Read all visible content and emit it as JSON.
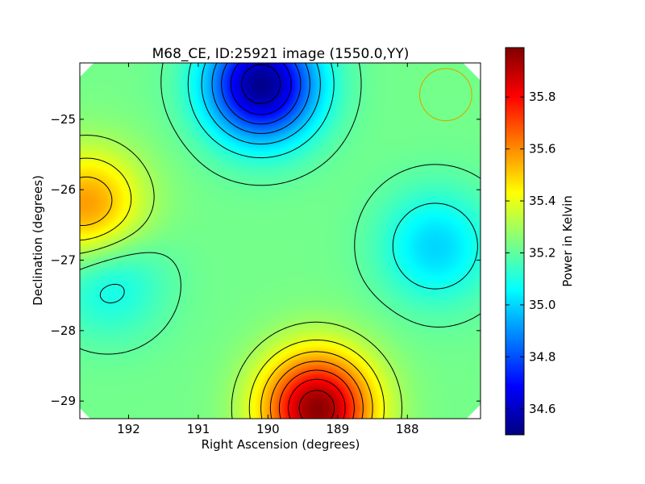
{
  "chart_data": {
    "type": "heatmap",
    "title": "M68_CE, ID:25921 image (1550.0,YY)",
    "xlabel": "Right Ascension (degrees)",
    "ylabel": "Declination (degrees)",
    "xlim": [
      192.7,
      186.95
    ],
    "ylim": [
      -29.25,
      -24.2
    ],
    "x_ticks": [
      192,
      191,
      190,
      189,
      188
    ],
    "x_tick_labels": [
      "192",
      "191",
      "190",
      "189",
      "188"
    ],
    "y_ticks": [
      -25,
      -26,
      -27,
      -28,
      -29
    ],
    "y_tick_labels": [
      "−25",
      "−26",
      "−27",
      "−28",
      "−29"
    ],
    "colorbar": {
      "label": "Power in Kelvin",
      "colormap": "jet",
      "range": [
        34.5,
        35.99
      ],
      "ticks": [
        34.6,
        34.8,
        35.0,
        35.2,
        35.4,
        35.6,
        35.8
      ],
      "tick_labels": [
        "34.6",
        "34.8",
        "35.0",
        "35.2",
        "35.4",
        "35.6",
        "35.8"
      ]
    },
    "field_centre": [
      189.85,
      -26.75
    ],
    "features": [
      {
        "kind": "minimum",
        "ra": 190.1,
        "dec": -24.5,
        "value": 34.52
      },
      {
        "kind": "maximum",
        "ra": 189.3,
        "dec": -29.1,
        "value": 35.97
      },
      {
        "kind": "local maximum",
        "ra": 192.6,
        "dec": -26.25,
        "value": 35.6
      },
      {
        "kind": "plateau",
        "ra": 192.3,
        "dec": -27.25,
        "value": 35.05
      },
      {
        "kind": "plateau",
        "ra": 187.6,
        "dec": -26.8,
        "value": 35.0
      }
    ],
    "contour_levels": [
      34.6,
      34.7,
      34.8,
      34.9,
      35.0,
      35.1,
      35.2,
      35.3,
      35.4,
      35.5,
      35.6,
      35.7,
      35.8,
      35.9
    ],
    "beam_marker": {
      "ra": 187.45,
      "dec": -24.65,
      "radius_deg": 0.37,
      "color": "#c8b400"
    },
    "grid": false,
    "legend": "none"
  }
}
